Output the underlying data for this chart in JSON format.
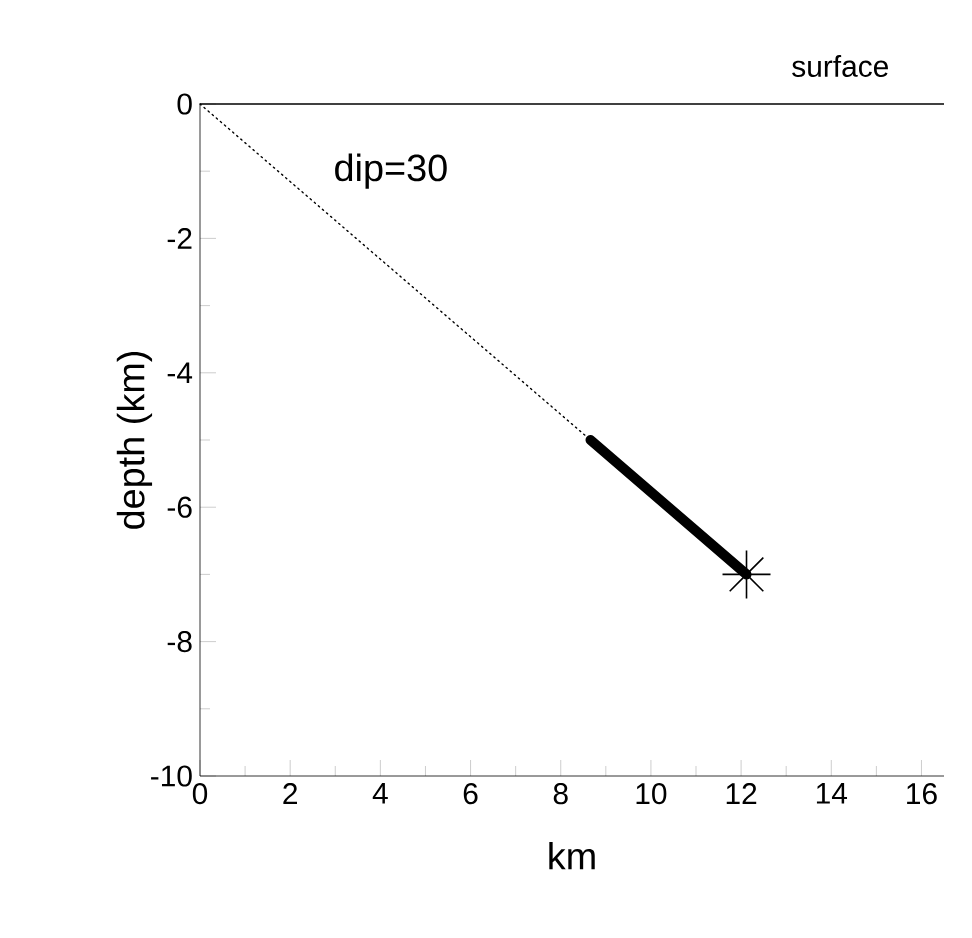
{
  "chart_data": {
    "type": "line",
    "xlabel": "km",
    "ylabel": "depth (km)",
    "xlim": [
      0,
      16.5
    ],
    "ylim": [
      -10,
      0
    ],
    "xticks": [
      0,
      2,
      4,
      6,
      8,
      10,
      12,
      14,
      16
    ],
    "yticks": [
      -10,
      -8,
      -6,
      -4,
      -2,
      0
    ],
    "series": [
      {
        "color": "#000000",
        "line_style": "dotted",
        "x": [
          0,
          8.66
        ],
        "values": [
          0,
          -5
        ]
      },
      {
        "color": "#000000",
        "line_style": "solid",
        "x": [
          8.66,
          12.12
        ],
        "values": [
          -5,
          -7
        ]
      },
      {
        "type": "scatter",
        "color": "#000000",
        "marker": "cross",
        "x": [
          12.12
        ],
        "values": [
          -7
        ]
      }
    ],
    "ref_lines": [
      {
        "axis": "y",
        "value": 0,
        "label": "surface"
      }
    ],
    "annotations": [
      "dip=30"
    ]
  }
}
